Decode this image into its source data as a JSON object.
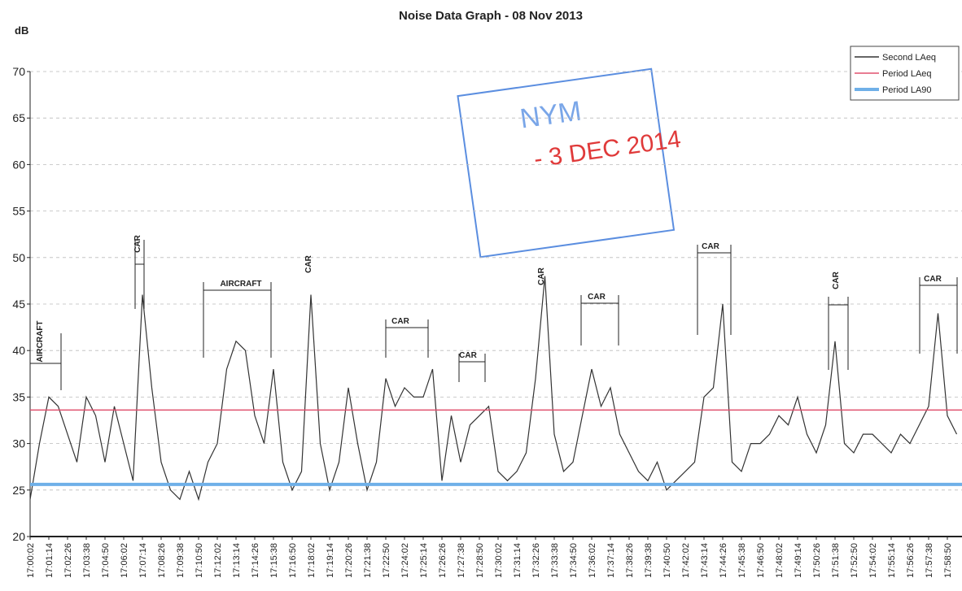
{
  "chart_data": {
    "type": "line",
    "title": "Noise Data Graph - 08 Nov 2013",
    "y_label": "dB",
    "categories": [
      "17:00:02",
      null,
      "17:01:14",
      null,
      "17:02:26",
      null,
      "17:03:38",
      null,
      "17:04:50",
      null,
      "17:06:02",
      null,
      "17:07:14",
      null,
      "17:08:26",
      null,
      "17:09:38",
      null,
      "17:10:50",
      null,
      "17:12:02",
      null,
      "17:13:14",
      null,
      "17:14:26",
      null,
      "17:15:38",
      null,
      "17:16:50",
      null,
      "17:18:02",
      null,
      "17:19:14",
      null,
      "17:20:26",
      null,
      "17:21:38",
      null,
      "17:22:50",
      null,
      "17:24:02",
      null,
      "17:25:14",
      null,
      "17:26:26",
      null,
      "17:27:38",
      null,
      "17:28:50",
      null,
      "17:30:02",
      null,
      "17:31:14",
      null,
      "17:32:26",
      null,
      "17:33:38",
      null,
      "17:34:50",
      null,
      "17:36:02",
      null,
      "17:37:14",
      null,
      "17:38:26",
      null,
      "17:39:38",
      null,
      "17:40:50",
      null,
      "17:42:02",
      null,
      "17:43:14",
      null,
      "17:44:26",
      null,
      "17:45:38",
      null,
      "17:46:50",
      null,
      "17:48:02",
      null,
      "17:49:14",
      null,
      "17:50:26",
      null,
      "17:51:38",
      null,
      "17:52:50",
      null,
      "17:54:02",
      null,
      "17:55:14",
      null,
      "17:56:26",
      null,
      "17:57:38",
      null,
      "17:58:50",
      null
    ],
    "series": [
      {
        "name": "Second LAeq",
        "color": "#333333",
        "values": [
          24,
          30,
          35,
          34,
          31,
          28,
          35,
          33,
          28,
          34,
          30,
          26,
          46,
          36,
          28,
          25,
          24,
          27,
          24,
          28,
          30,
          38,
          41,
          40,
          33,
          30,
          38,
          28,
          25,
          27,
          46,
          30,
          25,
          28,
          36,
          30,
          25,
          28,
          37,
          34,
          36,
          35,
          35,
          38,
          26,
          33,
          28,
          32,
          33,
          34,
          27,
          26,
          27,
          29,
          37,
          48,
          31,
          27,
          28,
          33,
          38,
          34,
          36,
          31,
          29,
          27,
          26,
          28,
          25,
          26,
          27,
          28,
          35,
          36,
          45,
          28,
          27,
          30,
          30,
          31,
          33,
          32,
          35,
          31,
          29,
          32,
          41,
          30,
          29,
          31,
          31,
          30,
          29,
          31,
          30,
          32,
          34,
          44,
          33,
          31
        ]
      },
      {
        "name": "Period LAeq",
        "color": "#e0506e",
        "value": 33.6
      },
      {
        "name": "Period LA90",
        "color": "#6fb0e8",
        "value": 25.6
      }
    ],
    "annotations": [
      "AIRCRAFT",
      "CAR",
      "AIRCRAFT",
      "CAR",
      "CAR",
      "CAR",
      "CAR",
      "CAR",
      "CAR",
      "CAR",
      "CAR"
    ],
    "stamp": [
      "NYM",
      "- 3 DEC 2014"
    ],
    "ylim": [
      20,
      70
    ],
    "yticks": [
      20,
      25,
      30,
      35,
      40,
      45,
      50,
      55,
      60,
      65,
      70
    ],
    "grid": true,
    "legend": "top-right"
  }
}
